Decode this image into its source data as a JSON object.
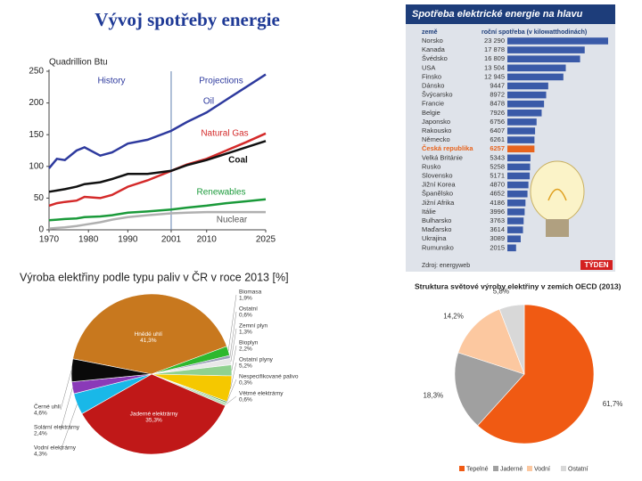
{
  "title": "Vývoj spotřeby energie",
  "chart_data": [
    {
      "type": "line",
      "ylabel": "Quadrillion Btu",
      "annotations": [
        "History",
        "Projections"
      ],
      "divider": 2001,
      "x": [
        1970,
        1972,
        1974,
        1977,
        1979,
        1983,
        1986,
        1990,
        1995,
        2001,
        2005,
        2010,
        2015,
        2020,
        2025
      ],
      "series": [
        {
          "name": "Oil",
          "color": "#2e3a9e",
          "values": [
            97,
            112,
            110,
            125,
            130,
            117,
            122,
            136,
            142,
            156,
            170,
            185,
            205,
            225,
            245
          ]
        },
        {
          "name": "Natural Gas",
          "color": "#d42a2a",
          "values": [
            38,
            42,
            44,
            46,
            52,
            50,
            55,
            68,
            78,
            93,
            103,
            112,
            125,
            138,
            152
          ]
        },
        {
          "name": "Coal",
          "color": "#111111",
          "values": [
            60,
            62,
            64,
            68,
            72,
            75,
            80,
            88,
            88,
            93,
            102,
            110,
            120,
            130,
            140
          ]
        },
        {
          "name": "Renewables",
          "color": "#1a9a3a",
          "values": [
            15,
            16,
            17,
            18,
            20,
            21,
            23,
            27,
            29,
            32,
            35,
            38,
            42,
            45,
            48
          ]
        },
        {
          "name": "Nuclear",
          "color": "#b0b0b0",
          "values": [
            2,
            3,
            4,
            6,
            8,
            12,
            16,
            20,
            23,
            26,
            27,
            28,
            28,
            28,
            28
          ]
        }
      ],
      "xlim": [
        1970,
        2025
      ],
      "ylim": [
        0,
        250
      ],
      "xticks": [
        1970,
        1980,
        1990,
        2001,
        2010,
        2025
      ],
      "yticks": [
        0,
        50,
        100,
        150,
        200,
        250
      ]
    },
    {
      "type": "hbar",
      "title": "Spotřeba elektrické energie na hlavu",
      "columns": [
        "země",
        "roční spotřeba (v kilowatthodinách)"
      ],
      "categories": [
        "Norsko",
        "Kanada",
        "Švédsko",
        "USA",
        "Finsko",
        "Dánsko",
        "Švýcarsko",
        "Francie",
        "Belgie",
        "Japonsko",
        "Rakousko",
        "Německo",
        "Česká republika",
        "Velká Británie",
        "Rusko",
        "Slovensko",
        "Jižní Korea",
        "Španělsko",
        "Jižní Afrika",
        "Itálie",
        "Bulharsko",
        "Maďarsko",
        "Ukrajina",
        "Rumunsko"
      ],
      "values": [
        23290,
        17878,
        16809,
        13504,
        12945,
        9447,
        8972,
        8478,
        7926,
        6756,
        6407,
        6261,
        6257,
        5343,
        5258,
        5171,
        4870,
        4652,
        4186,
        3996,
        3763,
        3614,
        3089,
        2015
      ],
      "value_labels": [
        "23 290",
        "17 878",
        "16 809",
        "13 504",
        "12 945",
        "9447",
        "8972",
        "8478",
        "7926",
        "6756",
        "6407",
        "6261",
        "6257",
        "5343",
        "5258",
        "5171",
        "4870",
        "4652",
        "4186",
        "3996",
        "3763",
        "3614",
        "3089",
        "2015"
      ],
      "color": "#3a5aa8",
      "highlight_index": 12,
      "highlight_color": "#e8641e",
      "source": "Zdroj: energyweb",
      "logo": "TÝDEN"
    },
    {
      "type": "pie",
      "title": "Výroba elektřiny podle typu paliv v ČR v roce 2013 [%]",
      "categories": [
        "Hnědé uhlí",
        "Biomasa",
        "Ostatní",
        "Zemní plyn",
        "Bioplyn",
        "Ostatní plyny",
        "Nespecifikované palivo",
        "Větrné elektrárny",
        "Jaderné elektrárny",
        "Vodní elektrárny",
        "Solární elektrárny",
        "Černé uhlí"
      ],
      "values": [
        41.3,
        1.9,
        0.6,
        1.3,
        2.2,
        5.2,
        0.3,
        0.6,
        35.3,
        4.3,
        2.4,
        4.6
      ],
      "value_labels": [
        "41,3%",
        "1,9%",
        "0,6%",
        "1,3%",
        "2,2%",
        "5,2%",
        "0,3%",
        "0,6%",
        "35,3%",
        "4,3%",
        "2,4%",
        "4,6%"
      ],
      "colors": [
        "#c8781e",
        "#2eb82e",
        "#9aa0b8",
        "#e8e8e8",
        "#8fd18f",
        "#f5c800",
        "#5aa05a",
        "#b8e0b8",
        "#c01818",
        "#19b8e8",
        "#8a3ab8",
        "#0a0a0a"
      ]
    },
    {
      "type": "pie",
      "title": "Struktura světové výroby elektřiny v zemích OECD (2013)",
      "categories": [
        "Tepelné",
        "Jaderné",
        "Vodní",
        "Ostatní"
      ],
      "values": [
        61.7,
        18.3,
        14.2,
        5.8
      ],
      "value_labels": [
        "61,7%",
        "18,3%",
        "14,2%",
        "5,8%"
      ],
      "colors": [
        "#f05a13",
        "#a0a0a0",
        "#fcc8a0",
        "#d8d8d8"
      ],
      "legend": "bottom"
    }
  ]
}
